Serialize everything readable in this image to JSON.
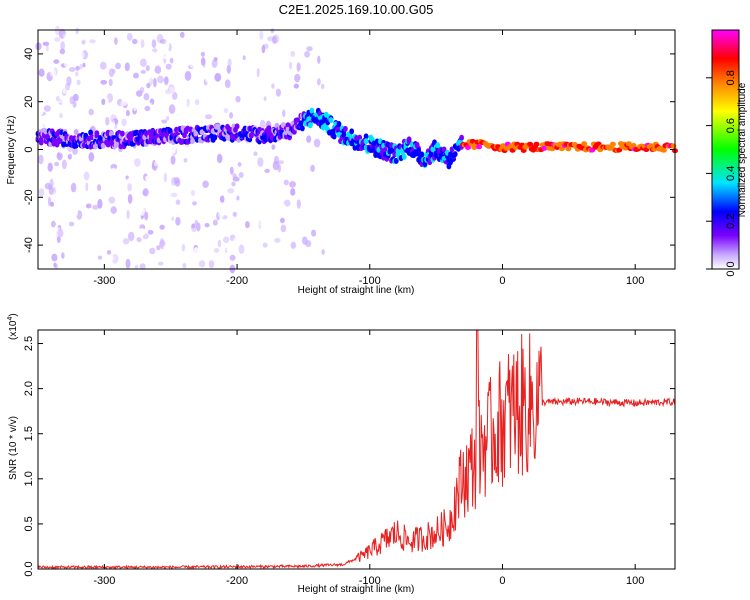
{
  "title": "C2E1.2025.169.10.00.G05",
  "chart_data": [
    {
      "type": "heatmap",
      "xlabel": "Height of straight line (km)",
      "ylabel": "Frequency (Hz)",
      "xlim": [
        -350,
        130
      ],
      "ylim": [
        -50,
        50
      ],
      "xticks": [
        -300,
        -200,
        -100,
        0,
        100
      ],
      "yticks": [
        -40,
        -20,
        0,
        20,
        40
      ],
      "colorbar": {
        "label": "Normalized spectral amplitude",
        "range": [
          0.0,
          1.0
        ],
        "ticks": [
          "0.0",
          "0.2",
          "0.4",
          "0.6",
          "0.8"
        ],
        "tick_values": [
          0.0,
          0.2,
          0.4,
          0.6,
          0.8
        ],
        "colors": [
          "#ffffff",
          "#c8a8ff",
          "#7a00ff",
          "#0000ff",
          "#00e5ff",
          "#00ff00",
          "#ffff00",
          "#ff8000",
          "#ff0000",
          "#ff00ff"
        ]
      },
      "signal_trace": {
        "x": [
          -350,
          -300,
          -260,
          -240,
          -220,
          -200,
          -180,
          -160,
          -150,
          -140,
          -130,
          -120,
          -110,
          -100,
          -90,
          -80,
          -70,
          -60,
          -50,
          -40,
          -30,
          -20,
          -10,
          0,
          50,
          130
        ],
        "y": [
          5,
          4,
          5,
          6,
          7,
          7,
          6,
          8,
          12,
          14,
          10,
          6,
          4,
          2,
          0,
          -2,
          2,
          -4,
          0,
          -4,
          2,
          2,
          2,
          1,
          1,
          1
        ]
      },
      "noise_region": {
        "x_start": -350,
        "x_end": -135
      }
    },
    {
      "type": "line",
      "xlabel": "Height of straight line (km)",
      "ylabel": "SNR (10 * v/v)",
      "y_multiplier": "(x10",
      "y_multiplier_exp": "4",
      "xlim": [
        -350,
        130
      ],
      "ylim": [
        0,
        2.65
      ],
      "xticks": [
        -300,
        -200,
        -100,
        0,
        100
      ],
      "yticks": [
        "0.0",
        "0.5",
        "1.0",
        "1.5",
        "2.0",
        "2.5"
      ],
      "ytick_values": [
        0.0,
        0.5,
        1.0,
        1.5,
        2.0,
        2.5
      ],
      "series": [
        {
          "color": "#e82020",
          "x": [
            -350,
            -250,
            -150,
            -120,
            -105,
            -100,
            -90,
            -80,
            -70,
            -60,
            -50,
            -40,
            -35,
            -30,
            -25,
            -20,
            -19,
            -18,
            -15,
            -10,
            -5,
            0,
            5,
            10,
            20,
            30,
            40,
            60,
            80,
            100,
            120,
            130
          ],
          "y": [
            0.02,
            0.02,
            0.03,
            0.05,
            0.15,
            0.2,
            0.3,
            0.4,
            0.3,
            0.35,
            0.4,
            0.5,
            0.8,
            1.0,
            1.1,
            1.2,
            2.65,
            1.3,
            1.4,
            1.45,
            1.55,
            1.65,
            1.72,
            1.78,
            1.82,
            1.85,
            1.85,
            1.86,
            1.85,
            1.84,
            1.85,
            1.85
          ]
        }
      ]
    }
  ]
}
